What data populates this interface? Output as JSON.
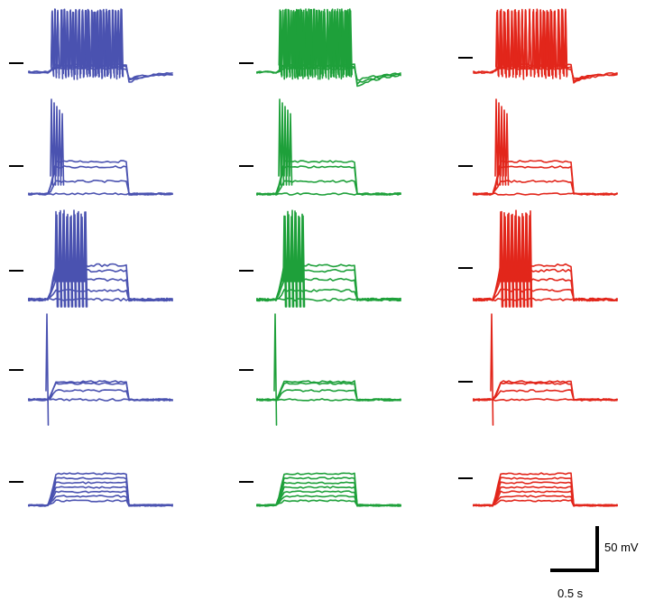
{
  "colors": {
    "column_1": "#4a52b0",
    "column_2": "#1ea03a",
    "column_3": "#e2261b",
    "marker": "#000000",
    "scale_bar": "#000000"
  },
  "columns": 3,
  "rows": [
    {
      "type": "tonic-firing",
      "n_traces": 3
    },
    {
      "type": "burst-plateau",
      "n_traces": 4
    },
    {
      "type": "irregular-burst",
      "n_traces": 5
    },
    {
      "type": "single-spike-plateau",
      "n_traces": 4
    },
    {
      "type": "passive-steps",
      "n_traces": 7
    }
  ],
  "scale_bar": {
    "voltage_label": "50 mV",
    "time_label": "0.5 s"
  }
}
